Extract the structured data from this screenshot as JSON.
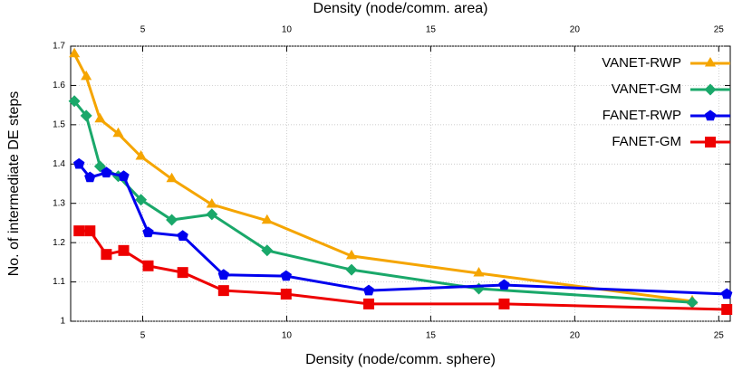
{
  "chart_data": {
    "type": "line",
    "xlabel": "Density (node/comm. sphere)",
    "x2label": "Density (node/comm. area)",
    "ylabel": "No. of intermediate DE steps",
    "xlim": [
      2.5,
      25.4
    ],
    "xticks": [
      5,
      10,
      15,
      20,
      25
    ],
    "x2lim": [
      2.5,
      25.4
    ],
    "x2ticks": [
      5,
      10,
      15,
      20,
      25
    ],
    "ylim": [
      1,
      1.7
    ],
    "yticks": [
      1,
      1.1,
      1.2,
      1.3,
      1.4,
      1.5,
      1.6,
      1.7
    ],
    "grid": true,
    "legend": "top-right",
    "series": [
      {
        "name": "VANET-RWP",
        "color": "#f5a500",
        "marker": "triangle",
        "x": [
          2.63,
          3.04,
          3.52,
          4.15,
          4.94,
          6.01,
          7.4,
          9.32,
          12.25,
          16.67,
          24.08
        ],
        "values": [
          1.68,
          1.622,
          1.514,
          1.477,
          1.419,
          1.362,
          1.297,
          1.256,
          1.166,
          1.122,
          1.051
        ]
      },
      {
        "name": "VANET-GM",
        "color": "#1aa86a",
        "marker": "diamond",
        "x": [
          2.63,
          3.04,
          3.52,
          4.15,
          4.94,
          6.01,
          7.4,
          9.32,
          12.25,
          16.67,
          24.08
        ],
        "values": [
          1.56,
          1.523,
          1.394,
          1.369,
          1.309,
          1.258,
          1.272,
          1.18,
          1.131,
          1.083,
          1.048
        ]
      },
      {
        "name": "FANET-RWP",
        "color": "#0000ee",
        "marker": "pentagon",
        "x": [
          2.79,
          3.17,
          3.74,
          4.34,
          5.19,
          6.39,
          7.81,
          9.98,
          12.85,
          17.55,
          25.28
        ],
        "values": [
          1.4,
          1.366,
          1.378,
          1.369,
          1.226,
          1.217,
          1.118,
          1.115,
          1.078,
          1.092,
          1.069
        ]
      },
      {
        "name": "FANET-GM",
        "color": "#ee0000",
        "marker": "square",
        "x": [
          2.79,
          3.17,
          3.74,
          4.34,
          5.19,
          6.39,
          7.81,
          9.98,
          12.85,
          17.55,
          25.28
        ],
        "values": [
          1.23,
          1.23,
          1.17,
          1.18,
          1.141,
          1.124,
          1.078,
          1.069,
          1.044,
          1.044,
          1.03
        ]
      }
    ]
  }
}
